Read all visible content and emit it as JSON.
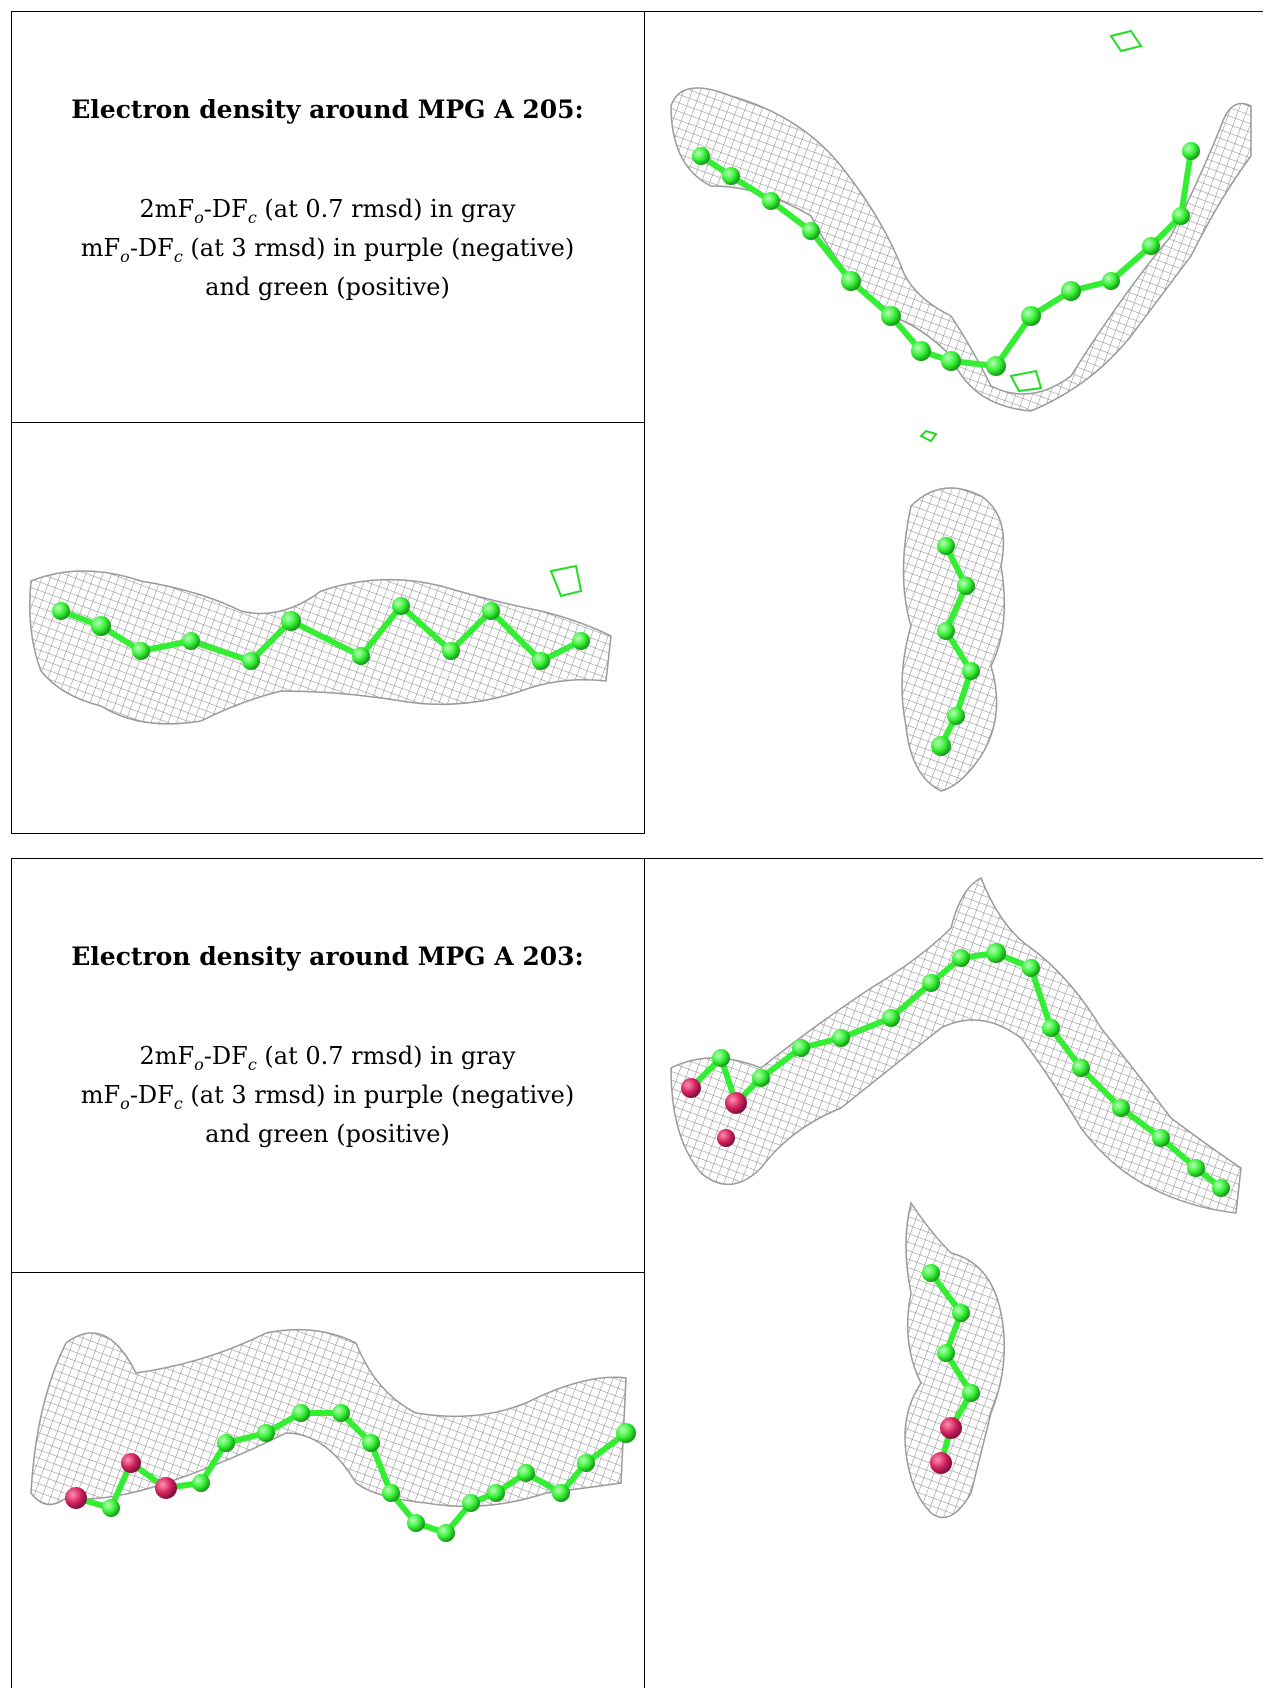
{
  "panels": [
    {
      "title": "Electron density around MPG A 205:",
      "line1_prefix": "2mF",
      "line1_sub1": "o",
      "line1_mid": "-DF",
      "line1_sub2": "c",
      "line1_suffix": " (at 0.7 rmsd) in gray",
      "line2_prefix": "mF",
      "line2_sub1": "o",
      "line2_mid": "-DF",
      "line2_sub2": "c",
      "line2_suffix": " (at 3 rmsd) in purple (negative)",
      "line3": "and green (positive)"
    },
    {
      "title": "Electron density around MPG A 203:",
      "line1_prefix": "2mF",
      "line1_sub1": "o",
      "line1_mid": "-DF",
      "line1_sub2": "c",
      "line1_suffix": " (at 0.7 rmsd) in gray",
      "line2_prefix": "mF",
      "line2_sub1": "o",
      "line2_mid": "-DF",
      "line2_sub2": "c",
      "line2_suffix": " (at 3 rmsd) in purple (negative)",
      "line3": "and green (positive)"
    }
  ],
  "colors": {
    "mesh_gray": "#8a8a8a",
    "carbon_green": "#33ee33",
    "oxygen_red": "#d0205a",
    "positive_density_green": "#22dd22"
  }
}
